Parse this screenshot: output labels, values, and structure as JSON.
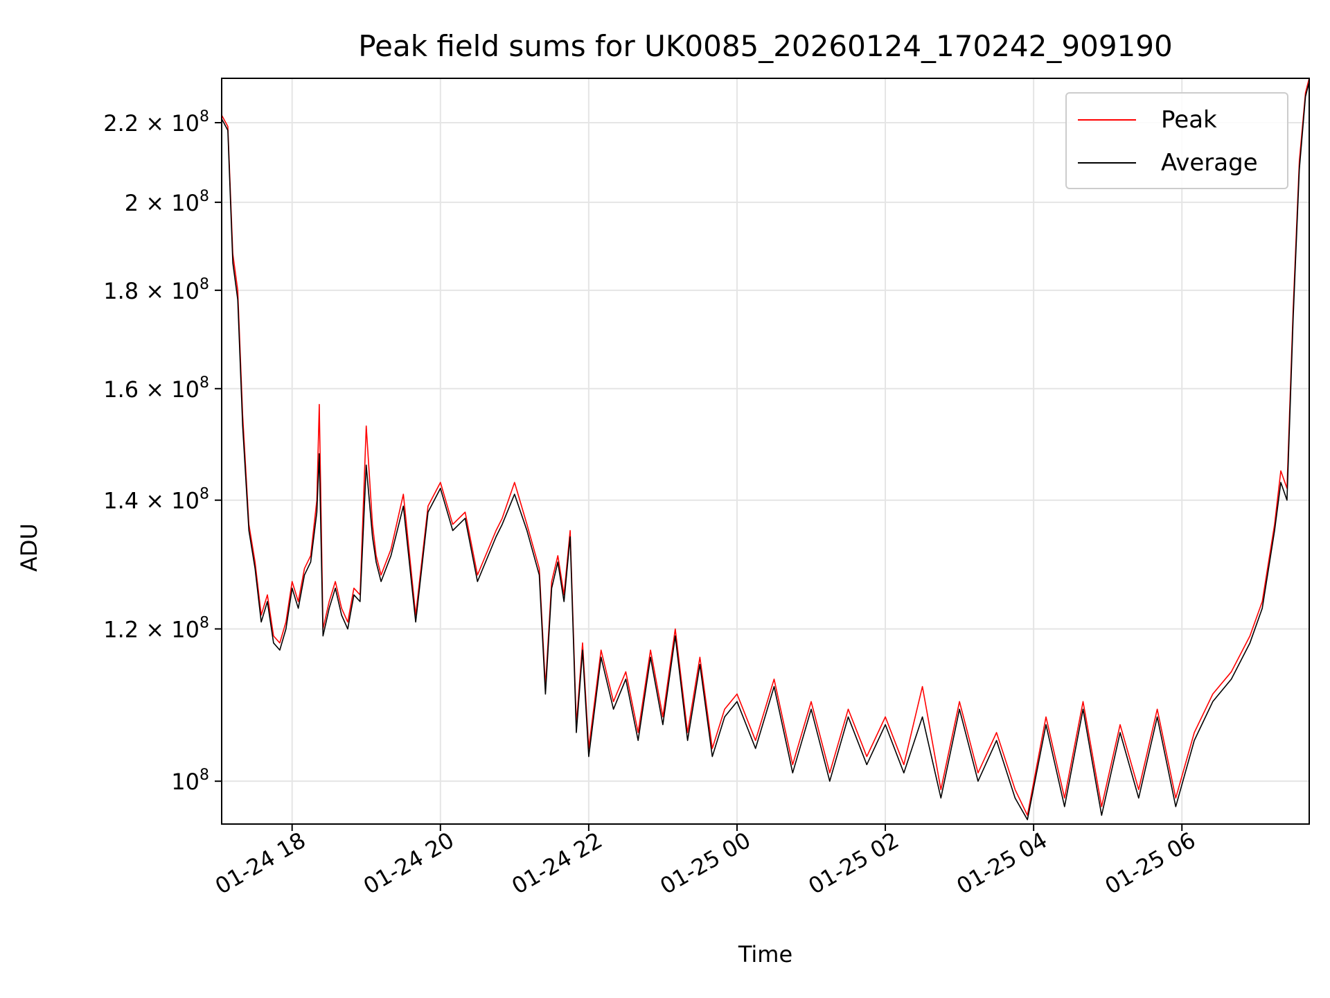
{
  "chart_data": {
    "type": "line",
    "title": "Peak field sums for UK0085_20260124_170242_909190",
    "xlabel": "Time",
    "ylabel": "ADU",
    "y_scale": "log",
    "grid": true,
    "legend_position": "top-right",
    "x_range": [
      "01-24 17:03",
      "01-25 07:43"
    ],
    "ylim": [
      95000000,
      232000000
    ],
    "x_ticks": [
      "01-24 18",
      "01-24 20",
      "01-24 22",
      "01-25 00",
      "01-25 02",
      "01-25 04",
      "01-25 06"
    ],
    "y_ticks": [
      {
        "value": 100000000,
        "mantissa": "",
        "exponent": "8"
      },
      {
        "value": 120000000,
        "mantissa": "1.2",
        "exponent": "8"
      },
      {
        "value": 140000000,
        "mantissa": "1.4",
        "exponent": "8"
      },
      {
        "value": 160000000,
        "mantissa": "1.6",
        "exponent": "8"
      },
      {
        "value": 180000000,
        "mantissa": "1.8",
        "exponent": "8"
      },
      {
        "value": 200000000,
        "mantissa": "2",
        "exponent": "8"
      },
      {
        "value": 220000000,
        "mantissa": "2.2",
        "exponent": "8"
      }
    ],
    "series": [
      {
        "name": "Peak",
        "color": "#ff0000",
        "x": [
          "01-24 17:03",
          "01-24 17:08",
          "01-24 17:12",
          "01-24 17:16",
          "01-24 17:20",
          "01-24 17:25",
          "01-24 17:30",
          "01-24 17:35",
          "01-24 17:40",
          "01-24 17:45",
          "01-24 17:50",
          "01-24 17:55",
          "01-24 18:00",
          "01-24 18:05",
          "01-24 18:10",
          "01-24 18:15",
          "01-24 18:20",
          "01-24 18:22",
          "01-24 18:25",
          "01-24 18:30",
          "01-24 18:35",
          "01-24 18:40",
          "01-24 18:45",
          "01-24 18:50",
          "01-24 18:55",
          "01-24 19:00",
          "01-24 19:05",
          "01-24 19:08",
          "01-24 19:12",
          "01-24 19:20",
          "01-24 19:30",
          "01-24 19:40",
          "01-24 19:50",
          "01-24 20:00",
          "01-24 20:10",
          "01-24 20:20",
          "01-24 20:30",
          "01-24 20:45",
          "01-24 20:50",
          "01-24 21:00",
          "01-24 21:10",
          "01-24 21:20",
          "01-24 21:25",
          "01-24 21:30",
          "01-24 21:35",
          "01-24 21:40",
          "01-24 21:45",
          "01-24 21:50",
          "01-24 21:55",
          "01-24 22:00",
          "01-24 22:10",
          "01-24 22:20",
          "01-24 22:30",
          "01-24 22:40",
          "01-24 22:50",
          "01-24 23:00",
          "01-24 23:10",
          "01-24 23:20",
          "01-24 23:30",
          "01-24 23:40",
          "01-24 23:50",
          "01-25 00:00",
          "01-25 00:15",
          "01-25 00:30",
          "01-25 00:45",
          "01-25 01:00",
          "01-25 01:15",
          "01-25 01:30",
          "01-25 01:45",
          "01-25 02:00",
          "01-25 02:15",
          "01-25 02:30",
          "01-25 02:45",
          "01-25 03:00",
          "01-25 03:15",
          "01-25 03:30",
          "01-25 03:45",
          "01-25 03:55",
          "01-25 04:10",
          "01-25 04:25",
          "01-25 04:40",
          "01-25 04:55",
          "01-25 05:10",
          "01-25 05:25",
          "01-25 05:40",
          "01-25 05:55",
          "01-25 06:10",
          "01-25 06:25",
          "01-25 06:40",
          "01-25 06:55",
          "01-25 07:05",
          "01-25 07:15",
          "01-25 07:20",
          "01-25 07:25",
          "01-25 07:30",
          "01-25 07:35",
          "01-25 07:40",
          "01-25 07:43"
        ],
        "values": [
          222000000,
          219000000,
          188000000,
          180000000,
          155000000,
          136000000,
          130000000,
          122000000,
          125000000,
          119000000,
          118000000,
          121000000,
          127000000,
          124000000,
          129000000,
          131000000,
          140000000,
          157000000,
          120000000,
          124000000,
          127000000,
          123000000,
          121000000,
          126000000,
          125000000,
          153000000,
          136000000,
          131000000,
          128000000,
          132000000,
          141000000,
          122000000,
          139000000,
          143000000,
          136000000,
          138000000,
          128000000,
          135000000,
          137000000,
          143000000,
          136000000,
          129000000,
          112000000,
          127000000,
          131000000,
          125000000,
          135000000,
          107000000,
          118000000,
          104000000,
          117000000,
          110000000,
          114000000,
          106000000,
          117000000,
          108000000,
          120000000,
          106000000,
          116000000,
          104000000,
          109000000,
          111000000,
          105000000,
          113000000,
          102000000,
          110000000,
          101000000,
          109000000,
          103000000,
          108000000,
          102000000,
          112000000,
          99000000,
          110000000,
          101000000,
          106000000,
          99000000,
          96000000,
          108000000,
          98000000,
          110000000,
          97000000,
          107000000,
          99000000,
          109000000,
          98000000,
          106000000,
          111000000,
          114000000,
          119000000,
          124000000,
          136000000,
          145000000,
          142000000,
          176000000,
          210000000,
          228000000,
          232000000
        ]
      },
      {
        "name": "Average",
        "color": "#000000",
        "x": [
          "01-24 17:03",
          "01-24 17:08",
          "01-24 17:12",
          "01-24 17:16",
          "01-24 17:20",
          "01-24 17:25",
          "01-24 17:30",
          "01-24 17:35",
          "01-24 17:40",
          "01-24 17:45",
          "01-24 17:50",
          "01-24 17:55",
          "01-24 18:00",
          "01-24 18:05",
          "01-24 18:10",
          "01-24 18:15",
          "01-24 18:20",
          "01-24 18:22",
          "01-24 18:25",
          "01-24 18:30",
          "01-24 18:35",
          "01-24 18:40",
          "01-24 18:45",
          "01-24 18:50",
          "01-24 18:55",
          "01-24 19:00",
          "01-24 19:05",
          "01-24 19:08",
          "01-24 19:12",
          "01-24 19:20",
          "01-24 19:30",
          "01-24 19:40",
          "01-24 19:50",
          "01-24 20:00",
          "01-24 20:10",
          "01-24 20:20",
          "01-24 20:30",
          "01-24 20:45",
          "01-24 20:50",
          "01-24 21:00",
          "01-24 21:10",
          "01-24 21:20",
          "01-24 21:25",
          "01-24 21:30",
          "01-24 21:35",
          "01-24 21:40",
          "01-24 21:45",
          "01-24 21:50",
          "01-24 21:55",
          "01-24 22:00",
          "01-24 22:10",
          "01-24 22:20",
          "01-24 22:30",
          "01-24 22:40",
          "01-24 22:50",
          "01-24 23:00",
          "01-24 23:10",
          "01-24 23:20",
          "01-24 23:30",
          "01-24 23:40",
          "01-24 23:50",
          "01-25 00:00",
          "01-25 00:15",
          "01-25 00:30",
          "01-25 00:45",
          "01-25 01:00",
          "01-25 01:15",
          "01-25 01:30",
          "01-25 01:45",
          "01-25 02:00",
          "01-25 02:15",
          "01-25 02:30",
          "01-25 02:45",
          "01-25 03:00",
          "01-25 03:15",
          "01-25 03:30",
          "01-25 03:45",
          "01-25 03:55",
          "01-25 04:10",
          "01-25 04:25",
          "01-25 04:40",
          "01-25 04:55",
          "01-25 05:10",
          "01-25 05:25",
          "01-25 05:40",
          "01-25 05:55",
          "01-25 06:10",
          "01-25 06:25",
          "01-25 06:40",
          "01-25 06:55",
          "01-25 07:05",
          "01-25 07:15",
          "01-25 07:20",
          "01-25 07:25",
          "01-25 07:30",
          "01-25 07:35",
          "01-25 07:40",
          "01-25 07:43"
        ],
        "values": [
          221000000,
          218000000,
          186000000,
          178000000,
          153000000,
          135000000,
          129000000,
          121000000,
          124000000,
          118000000,
          117000000,
          120000000,
          126000000,
          123000000,
          128000000,
          130000000,
          138000000,
          148000000,
          119000000,
          123000000,
          126000000,
          122000000,
          120000000,
          125000000,
          124000000,
          146000000,
          134000000,
          130000000,
          127000000,
          131000000,
          139000000,
          121000000,
          138000000,
          142000000,
          135000000,
          137000000,
          127000000,
          134000000,
          136000000,
          141000000,
          135000000,
          128000000,
          111000000,
          126000000,
          130000000,
          124000000,
          134000000,
          106000000,
          117000000,
          103000000,
          116000000,
          109000000,
          113000000,
          105000000,
          116000000,
          107000000,
          119000000,
          105000000,
          115000000,
          103000000,
          108000000,
          110000000,
          104000000,
          112000000,
          101000000,
          109000000,
          100000000,
          108000000,
          102000000,
          107000000,
          101000000,
          108000000,
          98000000,
          109000000,
          100000000,
          105000000,
          98000000,
          95500000,
          107000000,
          97000000,
          109000000,
          96000000,
          106000000,
          98000000,
          108000000,
          97000000,
          105000000,
          110000000,
          113000000,
          118000000,
          123000000,
          135000000,
          143000000,
          140000000,
          174000000,
          208000000,
          227000000,
          231000000
        ]
      }
    ]
  }
}
